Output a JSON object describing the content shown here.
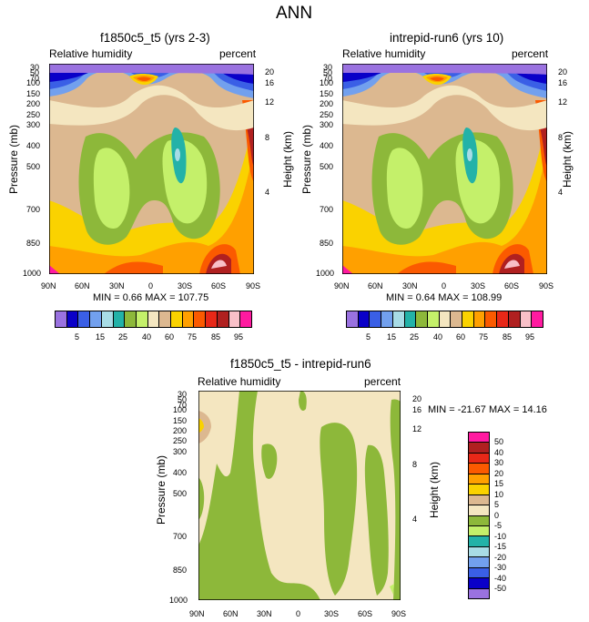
{
  "page_title": "ANN",
  "chart_data": [
    {
      "type": "heatmap",
      "title": "f1850c5_t5 (yrs 2-3)",
      "left_label": "Relative humidity",
      "right_label": "percent",
      "ylabel": "Pressure (mb)",
      "ylabel2": "Height (km)",
      "x_ticks": [
        "90N",
        "60N",
        "30N",
        "0",
        "30S",
        "60S",
        "90S"
      ],
      "y_ticks": [
        "30",
        "50",
        "70",
        "100",
        "150",
        "200",
        "250",
        "300",
        "400",
        "500",
        "700",
        "850",
        "1000"
      ],
      "y2_ticks": [
        "20",
        "16",
        "12",
        "8",
        "4"
      ],
      "min": "0.66",
      "max": "107.75",
      "min_label": "MIN =",
      "max_label": "MAX =",
      "contour_levels": [
        5,
        10,
        15,
        20,
        25,
        30,
        40,
        50,
        60,
        70,
        75,
        80,
        85,
        90,
        95
      ]
    },
    {
      "type": "heatmap",
      "title": "intrepid-run6 (yrs 10)",
      "left_label": "Relative humidity",
      "right_label": "percent",
      "ylabel": "Pressure (mb)",
      "ylabel2": "Height (km)",
      "x_ticks": [
        "90N",
        "60N",
        "30N",
        "0",
        "30S",
        "60S",
        "90S"
      ],
      "y_ticks": [
        "30",
        "50",
        "70",
        "100",
        "150",
        "200",
        "250",
        "300",
        "400",
        "500",
        "700",
        "850",
        "1000"
      ],
      "y2_ticks": [
        "20",
        "16",
        "12",
        "8",
        "4"
      ],
      "min": "0.64",
      "max": "108.99",
      "min_label": "MIN =",
      "max_label": "MAX =",
      "contour_levels": [
        5,
        10,
        15,
        20,
        25,
        30,
        40,
        50,
        60,
        70,
        75,
        80,
        85,
        90,
        95
      ]
    },
    {
      "type": "heatmap",
      "title": "f1850c5_t5 - intrepid-run6",
      "left_label": "Relative humidity",
      "right_label": "percent",
      "ylabel": "Pressure (mb)",
      "ylabel2": "Height (km)",
      "x_ticks": [
        "90N",
        "60N",
        "30N",
        "0",
        "30S",
        "60S",
        "90S"
      ],
      "y_ticks": [
        "30",
        "50",
        "70",
        "100",
        "150",
        "200",
        "250",
        "300",
        "400",
        "500",
        "700",
        "850",
        "1000"
      ],
      "y2_ticks": [
        "20",
        "16",
        "12",
        "8",
        "4"
      ],
      "min": "-21.67",
      "max": "14.16",
      "min_label": "MIN =",
      "max_label": "MAX =",
      "contour_levels": [
        -50,
        -40,
        -30,
        -20,
        -15,
        -10,
        -5,
        0,
        5,
        10,
        15,
        20,
        30,
        40,
        50
      ]
    }
  ],
  "colorbar_top": {
    "colors": [
      "#9a72e0",
      "#0a00c8",
      "#3a5fe6",
      "#72a0ee",
      "#a8dce6",
      "#23b2a8",
      "#8db83a",
      "#c4f06a",
      "#f4e6c0",
      "#dcb890",
      "#fad200",
      "#ffa000",
      "#fb5a00",
      "#e82818",
      "#b02020",
      "#f8c0c8",
      "#ff1aa0"
    ],
    "labels": [
      "5",
      "15",
      "25",
      "40",
      "60",
      "75",
      "85",
      "95"
    ]
  },
  "colorbar_diff": {
    "colors": [
      "#ff1aa0",
      "#b02020",
      "#e82818",
      "#fb5a00",
      "#ffa000",
      "#fad200",
      "#dcb890",
      "#f4e6c0",
      "#8db83a",
      "#c4f06a",
      "#23b2a8",
      "#a8dce6",
      "#72a0ee",
      "#3a5fe6",
      "#0a00c8",
      "#9a72e0"
    ],
    "labels": [
      "50",
      "40",
      "30",
      "20",
      "15",
      "10",
      "5",
      "0",
      "-5",
      "-10",
      "-15",
      "-20",
      "-30",
      "-40",
      "-50"
    ]
  }
}
